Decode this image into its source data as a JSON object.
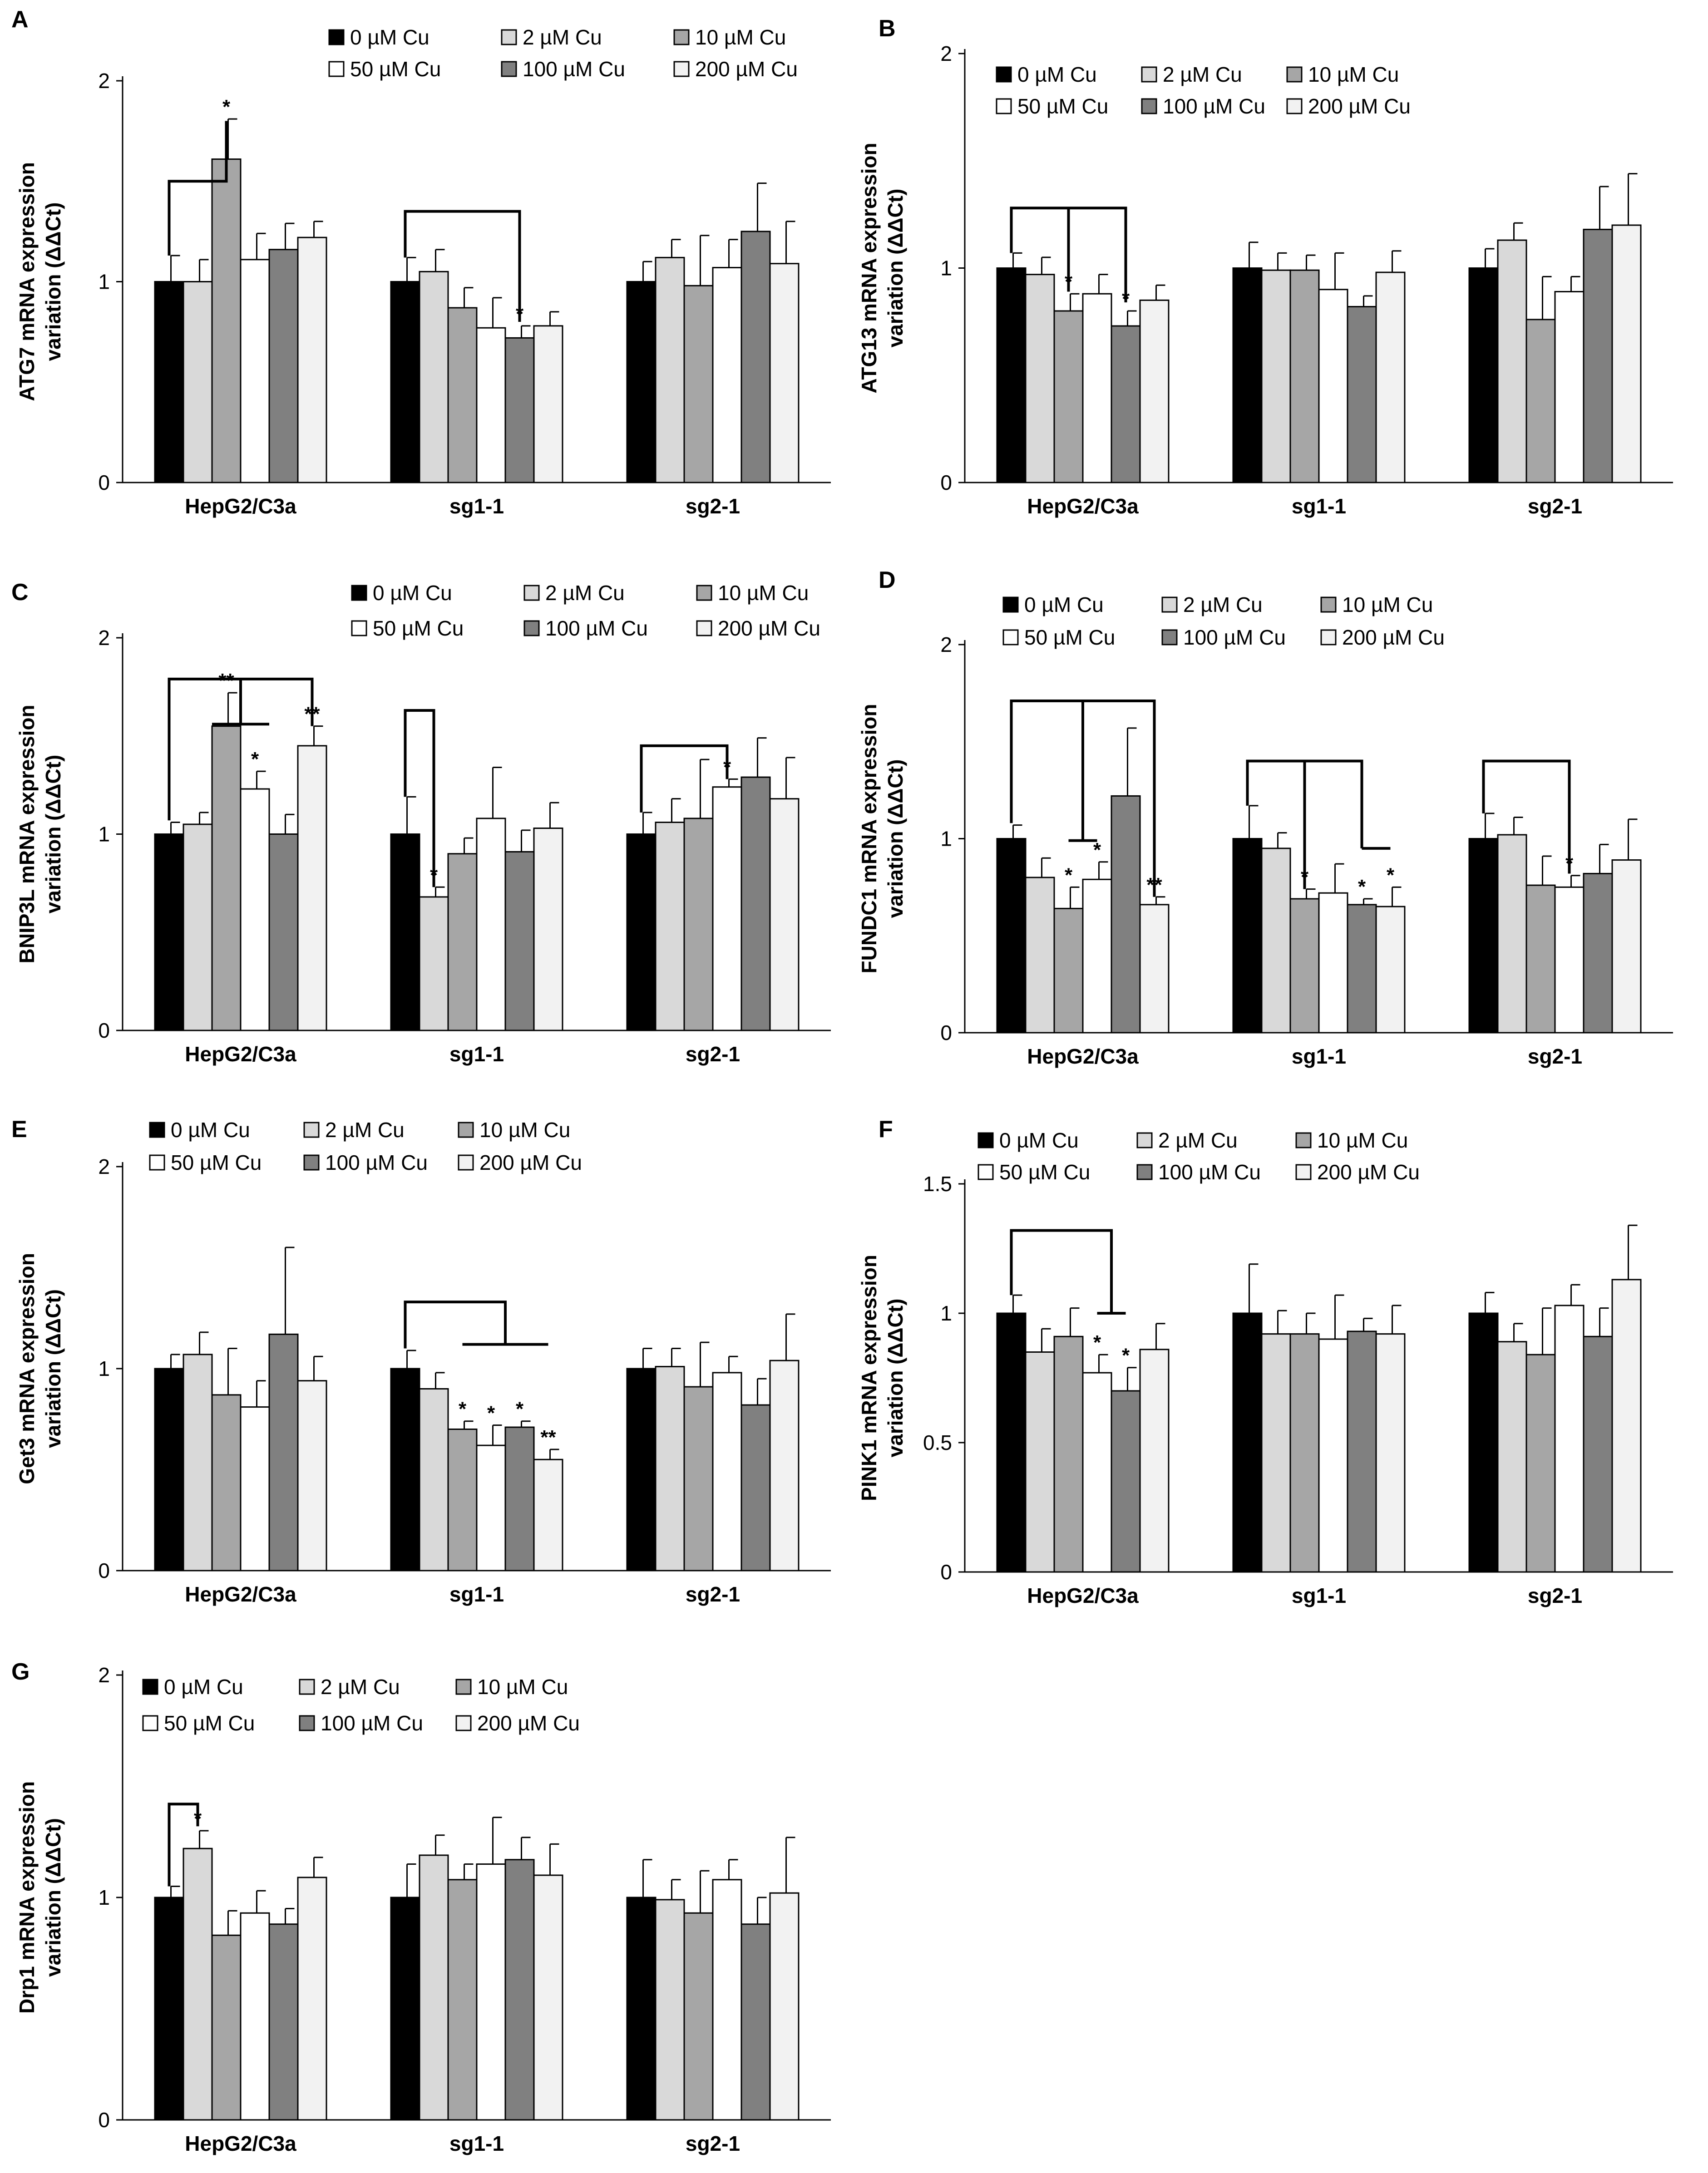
{
  "legend_labels": [
    "0 µM Cu",
    "2 µM Cu",
    "10 µM Cu",
    "50 µM Cu",
    "100 µM Cu",
    "200 µM Cu"
  ],
  "colors": {
    "0 µM Cu": "#000000",
    "2 µM Cu": "#d9d9d9",
    "10 µM Cu": "#a6a6a6",
    "50 µM Cu": "#ffffff",
    "100 µM Cu": "#808080",
    "200 µM Cu": "#f2f2f2"
  },
  "chart_data": [
    {
      "panel": "A",
      "type": "bar",
      "ylabel": "ATG7 mRNA expression variation (ΔΔCt)",
      "categories": [
        "HepG2/C3a",
        "sg1-1",
        "sg2-1"
      ],
      "ylim": [
        0,
        2
      ],
      "yticks": [
        "0",
        "1",
        "2"
      ],
      "legend_position": "top-right",
      "series": [
        {
          "name": "0 µM Cu",
          "values": [
            1.0,
            1.0,
            1.0
          ],
          "errors": [
            0.13,
            0.12,
            0.1
          ]
        },
        {
          "name": "2 µM Cu",
          "values": [
            1.0,
            1.05,
            1.12
          ],
          "errors": [
            0.11,
            0.11,
            0.09
          ]
        },
        {
          "name": "10 µM Cu",
          "values": [
            1.61,
            0.87,
            0.98
          ],
          "errors": [
            0.2,
            0.1,
            0.25
          ]
        },
        {
          "name": "50 µM Cu",
          "values": [
            1.11,
            0.77,
            1.07
          ],
          "errors": [
            0.13,
            0.15,
            0.14
          ]
        },
        {
          "name": "100 µM Cu",
          "values": [
            1.16,
            0.72,
            1.25
          ],
          "errors": [
            0.13,
            0.06,
            0.24
          ]
        },
        {
          "name": "200 µM Cu",
          "values": [
            1.22,
            0.78,
            1.09
          ],
          "errors": [
            0.08,
            0.07,
            0.21
          ]
        }
      ],
      "significance": [
        {
          "category": "HepG2/C3a",
          "series": "10 µM Cu",
          "label": "*"
        },
        {
          "category": "sg1-1",
          "series": "100 µM Cu",
          "label": "*"
        }
      ]
    },
    {
      "panel": "B",
      "type": "bar",
      "ylabel": "ATG13 mRNA expression variation (ΔΔCt)",
      "categories": [
        "HepG2/C3a",
        "sg1-1",
        "sg2-1"
      ],
      "ylim": [
        0,
        2
      ],
      "yticks": [
        "0",
        "1",
        "2"
      ],
      "legend_position": "top-right",
      "series": [
        {
          "name": "0 µM Cu",
          "values": [
            1.0,
            1.0,
            1.0
          ],
          "errors": [
            0.07,
            0.12,
            0.09
          ]
        },
        {
          "name": "2 µM Cu",
          "values": [
            0.97,
            0.99,
            1.13
          ],
          "errors": [
            0.08,
            0.08,
            0.08
          ]
        },
        {
          "name": "10 µM Cu",
          "values": [
            0.8,
            0.99,
            0.76
          ],
          "errors": [
            0.08,
            0.07,
            0.2
          ]
        },
        {
          "name": "50 µM Cu",
          "values": [
            0.88,
            0.9,
            0.89
          ],
          "errors": [
            0.09,
            0.17,
            0.07
          ]
        },
        {
          "name": "100 µM Cu",
          "values": [
            0.73,
            0.82,
            1.18
          ],
          "errors": [
            0.07,
            0.05,
            0.2
          ]
        },
        {
          "name": "200 µM Cu",
          "values": [
            0.85,
            0.98,
            1.2
          ],
          "errors": [
            0.07,
            0.1,
            0.24
          ]
        }
      ],
      "significance": [
        {
          "category": "HepG2/C3a",
          "series": "10 µM Cu",
          "label": "*"
        },
        {
          "category": "HepG2/C3a",
          "series": "100 µM Cu",
          "label": "*"
        }
      ]
    },
    {
      "panel": "C",
      "type": "bar",
      "ylabel": "BNIP3L mRNA expression variation (ΔΔCt)",
      "categories": [
        "HepG2/C3a",
        "sg1-1",
        "sg2-1"
      ],
      "ylim": [
        0,
        2
      ],
      "yticks": [
        "0",
        "1",
        "2"
      ],
      "legend_position": "top-right",
      "series": [
        {
          "name": "0 µM Cu",
          "values": [
            1.0,
            1.0,
            1.0
          ],
          "errors": [
            0.06,
            0.19,
            0.11
          ]
        },
        {
          "name": "2 µM Cu",
          "values": [
            1.05,
            0.68,
            1.06
          ],
          "errors": [
            0.06,
            0.05,
            0.12
          ]
        },
        {
          "name": "10 µM Cu",
          "values": [
            1.55,
            0.9,
            1.08
          ],
          "errors": [
            0.17,
            0.08,
            0.3
          ]
        },
        {
          "name": "50 µM Cu",
          "values": [
            1.23,
            1.08,
            1.24
          ],
          "errors": [
            0.09,
            0.26,
            0.04
          ]
        },
        {
          "name": "100 µM Cu",
          "values": [
            1.0,
            0.91,
            1.29
          ],
          "errors": [
            0.1,
            0.11,
            0.2
          ]
        },
        {
          "name": "200 µM Cu",
          "values": [
            1.45,
            1.03,
            1.18
          ],
          "errors": [
            0.1,
            0.13,
            0.21
          ]
        }
      ],
      "significance": [
        {
          "category": "HepG2/C3a",
          "series": "10 µM Cu",
          "label": "**"
        },
        {
          "category": "HepG2/C3a",
          "series": "50 µM Cu",
          "label": "*"
        },
        {
          "category": "HepG2/C3a",
          "series": "200 µM Cu",
          "label": "**"
        },
        {
          "category": "sg1-1",
          "series": "2 µM Cu",
          "label": "*"
        },
        {
          "category": "sg2-1",
          "series": "50 µM Cu",
          "label": "*"
        }
      ]
    },
    {
      "panel": "D",
      "type": "bar",
      "ylabel": "FUNDC1 mRNA expression variation (ΔΔCt)",
      "categories": [
        "HepG2/C3a",
        "sg1-1",
        "sg2-1"
      ],
      "ylim": [
        0,
        2
      ],
      "yticks": [
        "0",
        "1",
        "2"
      ],
      "legend_position": "top-right",
      "series": [
        {
          "name": "0 µM Cu",
          "values": [
            1.0,
            1.0,
            1.0
          ],
          "errors": [
            0.07,
            0.17,
            0.13
          ]
        },
        {
          "name": "2 µM Cu",
          "values": [
            0.8,
            0.95,
            1.02
          ],
          "errors": [
            0.1,
            0.08,
            0.09
          ]
        },
        {
          "name": "10 µM Cu",
          "values": [
            0.64,
            0.69,
            0.76
          ],
          "errors": [
            0.11,
            0.05,
            0.15
          ]
        },
        {
          "name": "50 µM Cu",
          "values": [
            0.79,
            0.72,
            0.75
          ],
          "errors": [
            0.09,
            0.15,
            0.06
          ]
        },
        {
          "name": "100 µM Cu",
          "values": [
            1.22,
            0.66,
            0.82
          ],
          "errors": [
            0.35,
            0.03,
            0.15
          ]
        },
        {
          "name": "200 µM Cu",
          "values": [
            0.66,
            0.65,
            0.89
          ],
          "errors": [
            0.04,
            0.1,
            0.21
          ]
        }
      ],
      "significance": [
        {
          "category": "HepG2/C3a",
          "series": "10 µM Cu",
          "label": "*"
        },
        {
          "category": "HepG2/C3a",
          "series": "50 µM Cu",
          "label": "*"
        },
        {
          "category": "HepG2/C3a",
          "series": "200 µM Cu",
          "label": "**"
        },
        {
          "category": "sg1-1",
          "series": "10 µM Cu",
          "label": "*"
        },
        {
          "category": "sg1-1",
          "series": "100 µM Cu",
          "label": "*"
        },
        {
          "category": "sg1-1",
          "series": "200 µM Cu",
          "label": "*"
        },
        {
          "category": "sg2-1",
          "series": "50 µM Cu",
          "label": "*"
        }
      ]
    },
    {
      "panel": "E",
      "type": "bar",
      "ylabel": "Get3 mRNA expression variation (ΔΔCt)",
      "categories": [
        "HepG2/C3a",
        "sg1-1",
        "sg2-1"
      ],
      "ylim": [
        0,
        2
      ],
      "yticks": [
        "0",
        "1",
        "2"
      ],
      "legend_position": "top-right",
      "series": [
        {
          "name": "0 µM Cu",
          "values": [
            1.0,
            1.0,
            1.0
          ],
          "errors": [
            0.07,
            0.09,
            0.1
          ]
        },
        {
          "name": "2 µM Cu",
          "values": [
            1.07,
            0.9,
            1.01
          ],
          "errors": [
            0.11,
            0.08,
            0.09
          ]
        },
        {
          "name": "10 µM Cu",
          "values": [
            0.87,
            0.7,
            0.91
          ],
          "errors": [
            0.23,
            0.04,
            0.22
          ]
        },
        {
          "name": "50 µM Cu",
          "values": [
            0.81,
            0.62,
            0.98
          ],
          "errors": [
            0.13,
            0.1,
            0.08
          ]
        },
        {
          "name": "100 µM Cu",
          "values": [
            1.17,
            0.71,
            0.82
          ],
          "errors": [
            0.43,
            0.03,
            0.13
          ]
        },
        {
          "name": "200 µM Cu",
          "values": [
            0.94,
            0.55,
            1.04
          ],
          "errors": [
            0.12,
            0.05,
            0.23
          ]
        }
      ],
      "significance": [
        {
          "category": "sg1-1",
          "series": "10 µM Cu",
          "label": "*"
        },
        {
          "category": "sg1-1",
          "series": "50 µM Cu",
          "label": "*"
        },
        {
          "category": "sg1-1",
          "series": "100 µM Cu",
          "label": "*"
        },
        {
          "category": "sg1-1",
          "series": "200 µM Cu",
          "label": "**"
        }
      ]
    },
    {
      "panel": "F",
      "type": "bar",
      "ylabel": "PINK1 mRNA expression variation (ΔΔCt)",
      "categories": [
        "HepG2/C3a",
        "sg1-1",
        "sg2-1"
      ],
      "ylim": [
        0,
        1.5
      ],
      "yticks": [
        "0",
        "0.5",
        "1",
        "1.5"
      ],
      "legend_position": "top",
      "series": [
        {
          "name": "0 µM Cu",
          "values": [
            1.0,
            1.0,
            1.0
          ],
          "errors": [
            0.07,
            0.19,
            0.08
          ]
        },
        {
          "name": "2 µM Cu",
          "values": [
            0.85,
            0.92,
            0.89
          ],
          "errors": [
            0.09,
            0.09,
            0.07
          ]
        },
        {
          "name": "10 µM Cu",
          "values": [
            0.91,
            0.92,
            0.84
          ],
          "errors": [
            0.11,
            0.08,
            0.18
          ]
        },
        {
          "name": "50 µM Cu",
          "values": [
            0.77,
            0.9,
            1.03
          ],
          "errors": [
            0.07,
            0.17,
            0.08
          ]
        },
        {
          "name": "100 µM Cu",
          "values": [
            0.7,
            0.93,
            0.91
          ],
          "errors": [
            0.09,
            0.05,
            0.11
          ]
        },
        {
          "name": "200 µM Cu",
          "values": [
            0.86,
            0.92,
            1.13
          ],
          "errors": [
            0.1,
            0.11,
            0.21
          ]
        }
      ],
      "significance": [
        {
          "category": "HepG2/C3a",
          "series": "50 µM Cu",
          "label": "*"
        },
        {
          "category": "HepG2/C3a",
          "series": "100 µM Cu",
          "label": "*"
        }
      ]
    },
    {
      "panel": "G",
      "type": "bar",
      "ylabel": "Drp1 mRNA expression variation (ΔΔCt)",
      "categories": [
        "HepG2/C3a",
        "sg1-1",
        "sg2-1"
      ],
      "ylim": [
        0,
        2
      ],
      "yticks": [
        "0",
        "1",
        "2"
      ],
      "legend_position": "top",
      "series": [
        {
          "name": "0 µM Cu",
          "values": [
            1.0,
            1.0,
            1.0
          ],
          "errors": [
            0.05,
            0.15,
            0.17
          ]
        },
        {
          "name": "2 µM Cu",
          "values": [
            1.22,
            1.19,
            0.99
          ],
          "errors": [
            0.08,
            0.09,
            0.09
          ]
        },
        {
          "name": "10 µM Cu",
          "values": [
            0.83,
            1.08,
            0.93
          ],
          "errors": [
            0.11,
            0.07,
            0.19
          ]
        },
        {
          "name": "50 µM Cu",
          "values": [
            0.93,
            1.15,
            1.08
          ],
          "errors": [
            0.1,
            0.21,
            0.09
          ]
        },
        {
          "name": "100 µM Cu",
          "values": [
            0.88,
            1.17,
            0.88
          ],
          "errors": [
            0.07,
            0.1,
            0.12
          ]
        },
        {
          "name": "200 µM Cu",
          "values": [
            1.09,
            1.1,
            1.02
          ],
          "errors": [
            0.09,
            0.14,
            0.25
          ]
        }
      ],
      "significance": [
        {
          "category": "HepG2/C3a",
          "series": "2 µM Cu",
          "label": "*"
        }
      ]
    }
  ]
}
